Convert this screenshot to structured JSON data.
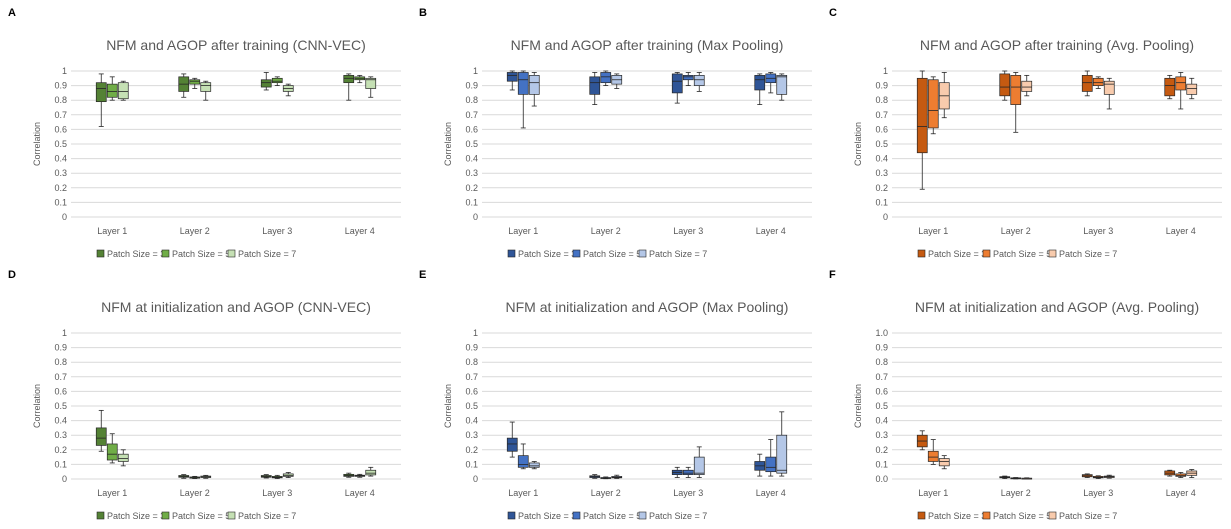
{
  "panel_letters": [
    "A",
    "B",
    "C",
    "D",
    "E",
    "F"
  ],
  "colors": {
    "green": [
      "#548235",
      "#70AD47",
      "#C5E0B4"
    ],
    "blue": [
      "#2F5597",
      "#4472C4",
      "#B4C7E7"
    ],
    "orange": [
      "#C55A11",
      "#ED7D31",
      "#F8CBAD"
    ],
    "grid": "#d9d9d9",
    "box_outline": "#262626"
  },
  "chart_data": [
    {
      "type": "box",
      "panel": "A",
      "palette": "green",
      "title": "NFM and AGOP after training (CNN-VEC)",
      "ylabel": "Correlation",
      "ylim": [
        0,
        1
      ],
      "yticks": [
        "0",
        "0.1",
        "0.2",
        "0.3",
        "0.4",
        "0.5",
        "0.6",
        "0.7",
        "0.8",
        "0.9",
        "1"
      ],
      "categories": [
        "Layer 1",
        "Layer 2",
        "Layer 3",
        "Layer 4"
      ],
      "series": [
        {
          "name": "Patch Size = 3",
          "boxes": [
            [
              0.62,
              0.79,
              0.88,
              0.92,
              0.98
            ],
            [
              0.82,
              0.86,
              0.91,
              0.96,
              0.98
            ],
            [
              0.87,
              0.89,
              0.92,
              0.94,
              0.99
            ],
            [
              0.8,
              0.92,
              0.95,
              0.97,
              0.98
            ]
          ]
        },
        {
          "name": "Patch Size = 5",
          "boxes": [
            [
              0.8,
              0.82,
              0.86,
              0.91,
              0.96
            ],
            [
              0.88,
              0.91,
              0.93,
              0.94,
              0.95
            ],
            [
              0.9,
              0.92,
              0.93,
              0.95,
              0.96
            ],
            [
              0.92,
              0.94,
              0.95,
              0.96,
              0.97
            ]
          ]
        },
        {
          "name": "Patch Size = 7",
          "boxes": [
            [
              0.8,
              0.81,
              0.86,
              0.92,
              0.93
            ],
            [
              0.8,
              0.86,
              0.9,
              0.92,
              0.93
            ],
            [
              0.83,
              0.86,
              0.88,
              0.9,
              0.91
            ],
            [
              0.82,
              0.88,
              0.94,
              0.95,
              0.96
            ]
          ]
        }
      ]
    },
    {
      "type": "box",
      "panel": "B",
      "palette": "blue",
      "title": "NFM and AGOP after training (Max Pooling)",
      "ylabel": "Correlation",
      "ylim": [
        0,
        1
      ],
      "yticks": [
        "0",
        "0.1",
        "0.2",
        "0.3",
        "0.4",
        "0.5",
        "0.6",
        "0.7",
        "0.8",
        "0.9",
        "1"
      ],
      "categories": [
        "Layer 1",
        "Layer 2",
        "Layer 3",
        "Layer 4"
      ],
      "series": [
        {
          "name": "Patch Size = 3",
          "boxes": [
            [
              0.87,
              0.93,
              0.97,
              0.99,
              1.0
            ],
            [
              0.77,
              0.84,
              0.92,
              0.96,
              0.99
            ],
            [
              0.78,
              0.85,
              0.93,
              0.98,
              0.99
            ],
            [
              0.77,
              0.87,
              0.94,
              0.97,
              0.98
            ]
          ]
        },
        {
          "name": "Patch Size = 5",
          "boxes": [
            [
              0.61,
              0.84,
              0.94,
              0.99,
              1.0
            ],
            [
              0.9,
              0.92,
              0.96,
              0.99,
              1.0
            ],
            [
              0.9,
              0.94,
              0.96,
              0.97,
              0.99
            ],
            [
              0.85,
              0.92,
              0.95,
              0.98,
              0.99
            ]
          ]
        },
        {
          "name": "Patch Size = 7",
          "boxes": [
            [
              0.76,
              0.84,
              0.92,
              0.97,
              0.99
            ],
            [
              0.88,
              0.91,
              0.94,
              0.97,
              0.98
            ],
            [
              0.86,
              0.9,
              0.94,
              0.97,
              0.99
            ],
            [
              0.8,
              0.84,
              0.96,
              0.97,
              0.98
            ]
          ]
        }
      ]
    },
    {
      "type": "box",
      "panel": "C",
      "palette": "orange",
      "title": "NFM and AGOP after training (Avg. Pooling)",
      "ylabel": "Correlation",
      "ylim": [
        0,
        1
      ],
      "yticks": [
        "0",
        "0.1",
        "0.2",
        "0.3",
        "0.4",
        "0.5",
        "0.6",
        "0.7",
        "0.8",
        "0.9",
        "1"
      ],
      "categories": [
        "Layer 1",
        "Layer 2",
        "Layer 3",
        "Layer 4"
      ],
      "series": [
        {
          "name": "Patch Size = 3",
          "boxes": [
            [
              0.19,
              0.44,
              0.62,
              0.95,
              1.0
            ],
            [
              0.8,
              0.83,
              0.89,
              0.98,
              1.0
            ],
            [
              0.83,
              0.86,
              0.92,
              0.97,
              1.0
            ],
            [
              0.81,
              0.83,
              0.9,
              0.95,
              0.97
            ]
          ]
        },
        {
          "name": "Patch Size = 5",
          "boxes": [
            [
              0.57,
              0.61,
              0.73,
              0.94,
              0.96
            ],
            [
              0.58,
              0.77,
              0.89,
              0.97,
              0.99
            ],
            [
              0.88,
              0.9,
              0.92,
              0.95,
              0.96
            ],
            [
              0.74,
              0.87,
              0.92,
              0.96,
              0.99
            ]
          ]
        },
        {
          "name": "Patch Size = 7",
          "boxes": [
            [
              0.68,
              0.74,
              0.83,
              0.92,
              0.99
            ],
            [
              0.83,
              0.86,
              0.89,
              0.93,
              0.97
            ],
            [
              0.74,
              0.84,
              0.91,
              0.93,
              0.95
            ],
            [
              0.81,
              0.84,
              0.88,
              0.91,
              0.95
            ]
          ]
        }
      ]
    },
    {
      "type": "box",
      "panel": "D",
      "palette": "green",
      "title": "NFM at initialization and AGOP (CNN-VEC)",
      "ylabel": "Correlation",
      "ylim": [
        0,
        1
      ],
      "yticks": [
        "0",
        "0.1",
        "0.2",
        "0.3",
        "0.4",
        "0.5",
        "0.6",
        "0.7",
        "0.8",
        "0.9",
        "1"
      ],
      "categories": [
        "Layer 1",
        "Layer 2",
        "Layer 3",
        "Layer 4"
      ],
      "series": [
        {
          "name": "Patch Size = 3",
          "boxes": [
            [
              0.19,
              0.23,
              0.28,
              0.35,
              0.47
            ],
            [
              0.005,
              0.012,
              0.018,
              0.024,
              0.03
            ],
            [
              0.007,
              0.012,
              0.018,
              0.024,
              0.03
            ],
            [
              0.012,
              0.018,
              0.024,
              0.032,
              0.04
            ]
          ]
        },
        {
          "name": "Patch Size = 5",
          "boxes": [
            [
              0.11,
              0.13,
              0.17,
              0.24,
              0.31
            ],
            [
              0.003,
              0.006,
              0.01,
              0.014,
              0.018
            ],
            [
              0.003,
              0.008,
              0.012,
              0.018,
              0.025
            ],
            [
              0.012,
              0.018,
              0.022,
              0.026,
              0.032
            ]
          ]
        },
        {
          "name": "Patch Size = 7",
          "boxes": [
            [
              0.09,
              0.12,
              0.14,
              0.17,
              0.2
            ],
            [
              0.005,
              0.01,
              0.014,
              0.02,
              0.025
            ],
            [
              0.01,
              0.018,
              0.025,
              0.035,
              0.045
            ],
            [
              0.02,
              0.028,
              0.04,
              0.06,
              0.08
            ]
          ]
        }
      ]
    },
    {
      "type": "box",
      "panel": "E",
      "palette": "blue",
      "title": "NFM at initialization and AGOP (Max Pooling)",
      "ylabel": "Correlation",
      "ylim": [
        0,
        1
      ],
      "yticks": [
        "0",
        "0.1",
        "0.2",
        "0.3",
        "0.4",
        "0.5",
        "0.6",
        "0.7",
        "0.8",
        "0.9",
        "1"
      ],
      "categories": [
        "Layer 1",
        "Layer 2",
        "Layer 3",
        "Layer 4"
      ],
      "series": [
        {
          "name": "Patch Size = 3",
          "boxes": [
            [
              0.15,
              0.19,
              0.24,
              0.28,
              0.39
            ],
            [
              0.005,
              0.01,
              0.016,
              0.022,
              0.03
            ],
            [
              0.01,
              0.03,
              0.045,
              0.06,
              0.08
            ],
            [
              0.02,
              0.06,
              0.09,
              0.12,
              0.17
            ]
          ]
        },
        {
          "name": "Patch Size = 5",
          "boxes": [
            [
              0.07,
              0.08,
              0.1,
              0.16,
              0.24
            ],
            [
              0.002,
              0.004,
              0.006,
              0.01,
              0.014
            ],
            [
              0.01,
              0.03,
              0.04,
              0.06,
              0.08
            ],
            [
              0.02,
              0.05,
              0.08,
              0.15,
              0.27
            ]
          ]
        },
        {
          "name": "Patch Size = 7",
          "boxes": [
            [
              0.07,
              0.08,
              0.09,
              0.11,
              0.12
            ],
            [
              0.004,
              0.008,
              0.012,
              0.018,
              0.026
            ],
            [
              0.01,
              0.03,
              0.04,
              0.15,
              0.22
            ],
            [
              0.02,
              0.04,
              0.06,
              0.3,
              0.46
            ]
          ]
        }
      ]
    },
    {
      "type": "box",
      "panel": "F",
      "palette": "orange",
      "title": "NFM at initialization and AGOP (Avg. Pooling)",
      "ylabel": "Correlation",
      "ylim": [
        0,
        1
      ],
      "yticks": [
        "0.0",
        "0.1",
        "0.2",
        "0.3",
        "0.4",
        "0.5",
        "0.6",
        "0.7",
        "0.8",
        "0.9",
        "1.0"
      ],
      "categories": [
        "Layer 1",
        "Layer 2",
        "Layer 3",
        "Layer 4"
      ],
      "series": [
        {
          "name": "Patch Size = 3",
          "boxes": [
            [
              0.2,
              0.22,
              0.26,
              0.3,
              0.33
            ],
            [
              0.003,
              0.008,
              0.012,
              0.016,
              0.02
            ],
            [
              0.01,
              0.015,
              0.022,
              0.03,
              0.035
            ],
            [
              0.02,
              0.028,
              0.04,
              0.055,
              0.06
            ]
          ]
        },
        {
          "name": "Patch Size = 5",
          "boxes": [
            [
              0.1,
              0.12,
              0.15,
              0.19,
              0.27
            ],
            [
              0.001,
              0.003,
              0.005,
              0.008,
              0.01
            ],
            [
              0.003,
              0.008,
              0.012,
              0.018,
              0.022
            ],
            [
              0.01,
              0.018,
              0.025,
              0.035,
              0.045
            ]
          ]
        },
        {
          "name": "Patch Size = 7",
          "boxes": [
            [
              0.07,
              0.09,
              0.12,
              0.14,
              0.16
            ],
            [
              0.001,
              0.002,
              0.004,
              0.006,
              0.008
            ],
            [
              0.006,
              0.01,
              0.015,
              0.02,
              0.026
            ],
            [
              0.01,
              0.025,
              0.04,
              0.055,
              0.065
            ]
          ]
        }
      ]
    }
  ]
}
